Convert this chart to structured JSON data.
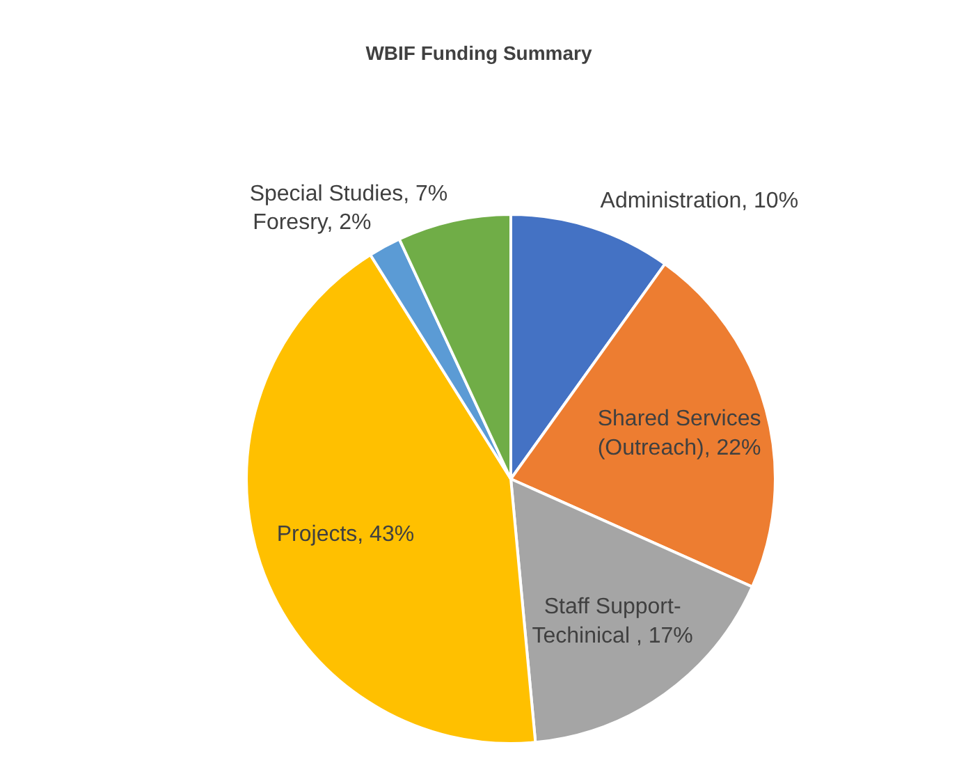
{
  "chart_data": {
    "type": "pie",
    "title": "WBIF Funding Summary",
    "categories": [
      "Administration",
      "Shared Services (Outreach)",
      "Staff Support-Techinical ",
      "Projects",
      "Foresry",
      "Special Studies"
    ],
    "values": [
      10,
      22,
      17,
      43,
      2,
      7
    ],
    "value_labels": [
      "10%",
      "22%",
      "17%",
      "43%",
      "2%",
      "7%"
    ],
    "colors": [
      "#4472c4",
      "#ed7d31",
      "#a5a5a5",
      "#ffc000",
      "#5b9bd5",
      "#70ad47"
    ]
  }
}
